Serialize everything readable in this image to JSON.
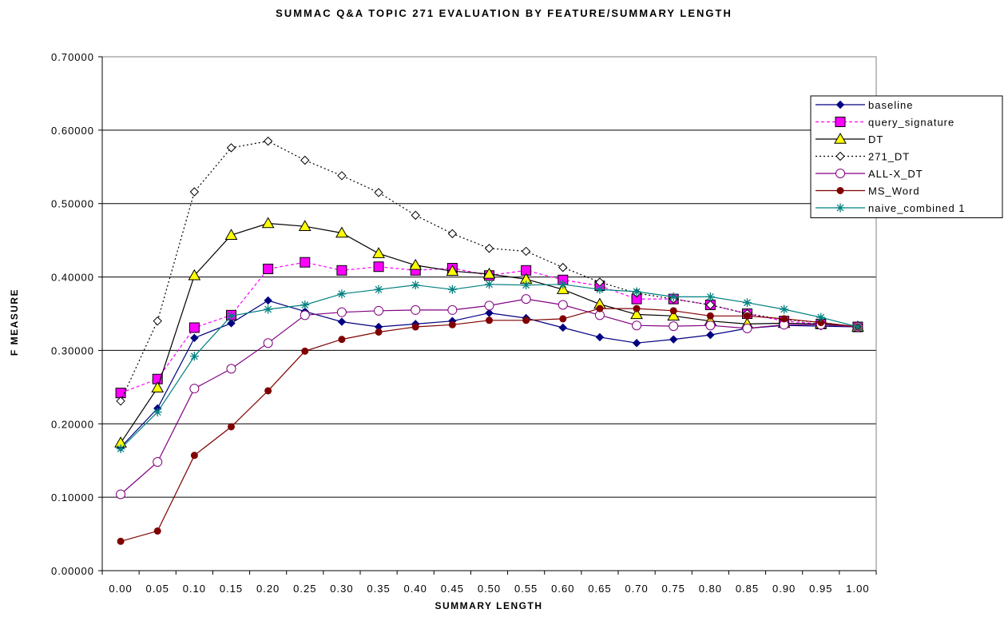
{
  "colors": {
    "baseline": "#000080",
    "query_signature": "#ff00ff",
    "DT": "#000000",
    "271_DT": "#000000",
    "ALL-X_DT": "#800080",
    "MS_Word": "#800000",
    "naive_combined 1": "#008080",
    "DT_marker_fill": "#ffff00",
    "gridline": "#000000"
  },
  "chart_data": {
    "type": "line",
    "title": "SUMMAC Q&A TOPIC 271 EVALUATION BY FEATURE/SUMMARY LENGTH",
    "xlabel": "SUMMARY LENGTH",
    "ylabel": "F MEASURE",
    "ylim": [
      0,
      0.7
    ],
    "grid": true,
    "legend_position": "top-right",
    "x_tick_labels": [
      "0.00",
      "0.05",
      "0.10",
      "0.15",
      "0.20",
      "0.25",
      "0.30",
      "0.35",
      "0.40",
      "0.45",
      "0.50",
      "0.55",
      "0.60",
      "0.65",
      "0.70",
      "0.75",
      "0.80",
      "0.85",
      "0.90",
      "0.95",
      "1.00"
    ],
    "y_tick_labels": [
      "0.00000",
      "0.10000",
      "0.20000",
      "0.30000",
      "0.40000",
      "0.50000",
      "0.60000",
      "0.70000"
    ],
    "x": [
      0.0,
      0.05,
      0.1,
      0.15,
      0.2,
      0.25,
      0.3,
      0.35,
      0.4,
      0.45,
      0.5,
      0.55,
      0.6,
      0.65,
      0.7,
      0.75,
      0.8,
      0.85,
      0.9,
      0.95,
      1.0
    ],
    "series": [
      {
        "name": "baseline",
        "values": [
          0.168,
          0.221,
          0.317,
          0.337,
          0.368,
          0.353,
          0.339,
          0.332,
          0.336,
          0.34,
          0.351,
          0.344,
          0.331,
          0.318,
          0.31,
          0.315,
          0.321,
          0.33,
          0.334,
          0.333,
          0.332
        ]
      },
      {
        "name": "query_signature",
        "values": [
          0.242,
          0.261,
          0.331,
          0.348,
          0.411,
          0.42,
          0.409,
          0.414,
          0.409,
          0.412,
          0.402,
          0.409,
          0.396,
          0.388,
          0.37,
          0.37,
          0.362,
          0.35,
          0.34,
          0.336,
          0.332
        ]
      },
      {
        "name": "DT",
        "values": [
          0.174,
          0.249,
          0.402,
          0.457,
          0.473,
          0.469,
          0.46,
          0.432,
          0.416,
          0.408,
          0.404,
          0.397,
          0.383,
          0.363,
          0.349,
          0.347,
          0.34,
          0.336,
          0.337,
          0.336,
          0.332
        ]
      },
      {
        "name": "271_DT",
        "values": [
          0.231,
          0.34,
          0.516,
          0.576,
          0.585,
          0.559,
          0.538,
          0.515,
          0.484,
          0.459,
          0.439,
          0.435,
          0.413,
          0.393,
          0.378,
          0.37,
          0.362,
          0.35,
          0.342,
          0.338,
          0.332
        ]
      },
      {
        "name": "ALL-X_DT",
        "values": [
          0.104,
          0.148,
          0.248,
          0.275,
          0.31,
          0.348,
          0.352,
          0.354,
          0.355,
          0.355,
          0.361,
          0.37,
          0.362,
          0.348,
          0.334,
          0.333,
          0.334,
          0.33,
          0.335,
          0.335,
          0.332
        ]
      },
      {
        "name": "MS_Word",
        "values": [
          0.04,
          0.054,
          0.157,
          0.196,
          0.245,
          0.299,
          0.315,
          0.325,
          0.332,
          0.335,
          0.341,
          0.341,
          0.343,
          0.357,
          0.357,
          0.354,
          0.347,
          0.347,
          0.343,
          0.338,
          0.332
        ]
      },
      {
        "name": "naive_combined 1",
        "values": [
          0.166,
          0.216,
          0.292,
          0.347,
          0.356,
          0.362,
          0.377,
          0.383,
          0.389,
          0.383,
          0.39,
          0.389,
          0.39,
          0.383,
          0.38,
          0.373,
          0.373,
          0.365,
          0.356,
          0.345,
          0.332
        ]
      }
    ]
  }
}
